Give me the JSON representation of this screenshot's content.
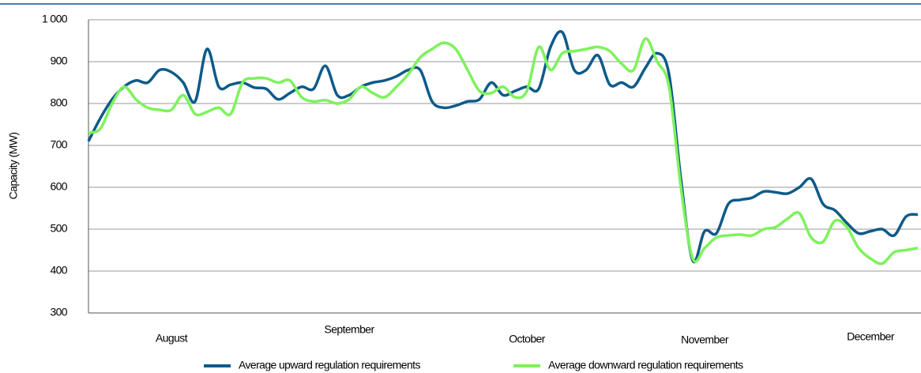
{
  "chart_data": {
    "type": "line",
    "y_label": "Capacity (MW)",
    "categories": [
      null,
      null,
      null,
      null,
      null,
      null,
      null,
      "August",
      null,
      null,
      null,
      null,
      null,
      null,
      null,
      null,
      null,
      null,
      null,
      null,
      null,
      null,
      "September",
      null,
      null,
      null,
      null,
      null,
      null,
      null,
      null,
      null,
      null,
      null,
      null,
      null,
      null,
      "October",
      null,
      null,
      null,
      null,
      null,
      null,
      null,
      null,
      null,
      null,
      null,
      null,
      null,
      null,
      "November",
      null,
      null,
      null,
      null,
      null,
      null,
      null,
      null,
      null,
      null,
      null,
      null,
      null,
      "December",
      null,
      null,
      null,
      null
    ],
    "series": [
      {
        "name": "Average upward regulation requirements",
        "color": "#0e5a8a",
        "values": [
          710,
          765,
          810,
          840,
          855,
          850,
          880,
          875,
          850,
          805,
          930,
          840,
          845,
          850,
          838,
          835,
          810,
          825,
          840,
          835,
          890,
          820,
          820,
          840,
          850,
          855,
          865,
          880,
          880,
          805,
          790,
          795,
          805,
          810,
          850,
          820,
          830,
          840,
          835,
          935,
          970,
          880,
          880,
          915,
          845,
          850,
          840,
          885,
          920,
          870,
          620,
          425,
          495,
          490,
          560,
          570,
          575,
          590,
          588,
          585,
          600,
          620,
          560,
          545,
          515,
          490,
          495,
          500,
          485,
          530,
          535
        ]
      },
      {
        "name": "Average downward regulation requirements",
        "color": "#7ef25c",
        "values": [
          730,
          740,
          800,
          840,
          810,
          790,
          785,
          785,
          820,
          775,
          780,
          790,
          775,
          850,
          860,
          860,
          850,
          855,
          815,
          805,
          808,
          800,
          810,
          840,
          825,
          815,
          840,
          870,
          910,
          930,
          945,
          930,
          880,
          830,
          825,
          840,
          815,
          830,
          935,
          880,
          920,
          925,
          930,
          935,
          925,
          895,
          880,
          955,
          900,
          840,
          600,
          430,
          455,
          480,
          485,
          487,
          485,
          500,
          505,
          525,
          538,
          480,
          470,
          520,
          505,
          455,
          430,
          418,
          445,
          450,
          455
        ]
      }
    ],
    "ylim": [
      300,
      1000
    ],
    "yticks": [
      300,
      400,
      500,
      600,
      700,
      800,
      900,
      {
        "value": 1000,
        "label": "1 000"
      }
    ],
    "grid": true,
    "legend": "bottom"
  }
}
